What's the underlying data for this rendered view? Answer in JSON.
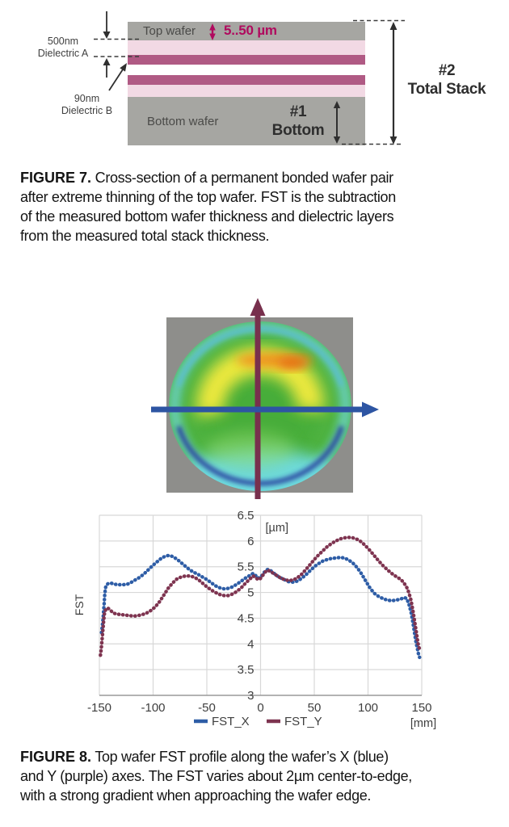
{
  "figure7": {
    "diagram": {
      "top_wafer_label": "Top wafer",
      "thickness_label": "5..50 µm",
      "dielectric_a_line1": "500nm",
      "dielectric_a_line2": "Dielectric A",
      "dielectric_b_line1": "90nm",
      "dielectric_b_line2": "Dielectric B",
      "bottom_wafer_label": "Bottom wafer",
      "bottom_ref_line1": "#1",
      "bottom_ref_line2": "Bottom",
      "total_stack_line1": "#2",
      "total_stack_line2": "Total Stack",
      "colors": {
        "wafer_gray": "#a6a6a2",
        "dielectric_light_pink": "#f2d9e4",
        "dielectric_dark_pink": "#b05a84",
        "thickness_text_magenta": "#b00a5e"
      }
    },
    "caption_label": "FIGURE 7.",
    "caption_lines": [
      "Cross-section of a permanent bonded wafer pair",
      "after extreme thinning of the top wafer. FST is the subtraction",
      "of the measured bottom wafer thickness and dielectric layers",
      "from the measured total stack thickness."
    ]
  },
  "figure8": {
    "wafer_map": {
      "colors": {
        "background_gray": "#8e8e8b",
        "wafer_green": "#4fb341",
        "ring_yellow": "#f3ea3d",
        "hot_orange": "#ee8a1f",
        "edge_cyan": "#6fdce2",
        "rim_blue": "#2c429f",
        "x_axis_arrow_blue": "#2d55a3",
        "y_axis_arrow_purple": "#78304d"
      }
    },
    "caption_label": "FIGURE 8.",
    "caption_lines": [
      "Top wafer FST profile along the wafer’s X (blue)",
      "and Y (purple) axes. The FST varies about 2µm center-to-edge,",
      "with a strong gradient when approaching the wafer edge."
    ]
  },
  "chart_data": {
    "type": "scatter",
    "title": "",
    "ylabel": "FST",
    "y_unit_label": "[µm]",
    "x_unit_label": "[mm]",
    "xlim": [
      -150,
      150
    ],
    "ylim": [
      3,
      6.5
    ],
    "x_ticks": [
      -150,
      -100,
      -50,
      0,
      50,
      100,
      150
    ],
    "y_ticks": [
      3,
      3.5,
      4,
      4.5,
      5,
      5.5,
      6,
      6.5
    ],
    "grid": true,
    "legend_position": "bottom",
    "series": [
      {
        "name": "FST_X",
        "color": "#2e5da6",
        "points": [
          [
            -148,
            4.22
          ],
          [
            -147.5,
            4.3
          ],
          [
            -147,
            4.4
          ],
          [
            -146.5,
            4.52
          ],
          [
            -146,
            4.65
          ],
          [
            -145.5,
            4.8
          ],
          [
            -145,
            4.95
          ],
          [
            -144.5,
            5.05
          ],
          [
            -144,
            5.12
          ],
          [
            -142,
            5.17
          ],
          [
            -139,
            5.18
          ],
          [
            -136,
            5.16
          ],
          [
            -132,
            5.15
          ],
          [
            -128,
            5.15
          ],
          [
            -124,
            5.16
          ],
          [
            -120,
            5.2
          ],
          [
            -116,
            5.25
          ],
          [
            -112,
            5.3
          ],
          [
            -108,
            5.37
          ],
          [
            -104,
            5.45
          ],
          [
            -100,
            5.53
          ],
          [
            -96,
            5.6
          ],
          [
            -92,
            5.67
          ],
          [
            -88,
            5.71
          ],
          [
            -85,
            5.72
          ],
          [
            -82,
            5.7
          ],
          [
            -78,
            5.65
          ],
          [
            -74,
            5.58
          ],
          [
            -70,
            5.51
          ],
          [
            -66,
            5.44
          ],
          [
            -62,
            5.39
          ],
          [
            -58,
            5.35
          ],
          [
            -54,
            5.3
          ],
          [
            -50,
            5.25
          ],
          [
            -46,
            5.19
          ],
          [
            -42,
            5.13
          ],
          [
            -38,
            5.09
          ],
          [
            -34,
            5.07
          ],
          [
            -30,
            5.08
          ],
          [
            -26,
            5.11
          ],
          [
            -22,
            5.16
          ],
          [
            -18,
            5.22
          ],
          [
            -14,
            5.28
          ],
          [
            -10,
            5.33
          ],
          [
            -7,
            5.37
          ],
          [
            -5,
            5.34
          ],
          [
            -3,
            5.29
          ],
          [
            -1,
            5.28
          ],
          [
            1,
            5.32
          ],
          [
            3,
            5.38
          ],
          [
            5,
            5.43
          ],
          [
            7,
            5.45
          ],
          [
            9,
            5.43
          ],
          [
            12,
            5.38
          ],
          [
            15,
            5.33
          ],
          [
            18,
            5.29
          ],
          [
            22,
            5.25
          ],
          [
            26,
            5.21
          ],
          [
            30,
            5.2
          ],
          [
            34,
            5.22
          ],
          [
            38,
            5.27
          ],
          [
            42,
            5.34
          ],
          [
            46,
            5.42
          ],
          [
            50,
            5.5
          ],
          [
            54,
            5.56
          ],
          [
            58,
            5.61
          ],
          [
            62,
            5.64
          ],
          [
            66,
            5.66
          ],
          [
            70,
            5.67
          ],
          [
            74,
            5.68
          ],
          [
            78,
            5.67
          ],
          [
            82,
            5.63
          ],
          [
            86,
            5.57
          ],
          [
            90,
            5.48
          ],
          [
            94,
            5.36
          ],
          [
            98,
            5.22
          ],
          [
            102,
            5.08
          ],
          [
            106,
            4.98
          ],
          [
            110,
            4.92
          ],
          [
            114,
            4.88
          ],
          [
            118,
            4.85
          ],
          [
            122,
            4.84
          ],
          [
            126,
            4.85
          ],
          [
            130,
            4.87
          ],
          [
            134,
            4.9
          ],
          [
            136,
            4.88
          ],
          [
            138,
            4.78
          ],
          [
            140,
            4.62
          ],
          [
            141.5,
            4.45
          ],
          [
            143,
            4.25
          ],
          [
            144.5,
            4.05
          ],
          [
            146,
            3.9
          ],
          [
            147,
            3.8
          ],
          [
            148,
            3.74
          ]
        ]
      },
      {
        "name": "FST_Y",
        "color": "#7e3450",
        "points": [
          [
            -149,
            3.78
          ],
          [
            -148.5,
            3.86
          ],
          [
            -148,
            3.96
          ],
          [
            -147.5,
            4.08
          ],
          [
            -147,
            4.2
          ],
          [
            -146.5,
            4.33
          ],
          [
            -146,
            4.45
          ],
          [
            -145.5,
            4.55
          ],
          [
            -145,
            4.62
          ],
          [
            -144,
            4.67
          ],
          [
            -142.5,
            4.7
          ],
          [
            -141,
            4.68
          ],
          [
            -139,
            4.64
          ],
          [
            -137,
            4.6
          ],
          [
            -134,
            4.58
          ],
          [
            -130,
            4.57
          ],
          [
            -126,
            4.56
          ],
          [
            -122,
            4.55
          ],
          [
            -118,
            4.54
          ],
          [
            -114,
            4.55
          ],
          [
            -110,
            4.57
          ],
          [
            -106,
            4.6
          ],
          [
            -102,
            4.65
          ],
          [
            -98,
            4.72
          ],
          [
            -94,
            4.82
          ],
          [
            -90,
            4.95
          ],
          [
            -86,
            5.08
          ],
          [
            -82,
            5.18
          ],
          [
            -78,
            5.26
          ],
          [
            -74,
            5.3
          ],
          [
            -70,
            5.32
          ],
          [
            -66,
            5.32
          ],
          [
            -62,
            5.3
          ],
          [
            -58,
            5.25
          ],
          [
            -54,
            5.18
          ],
          [
            -50,
            5.11
          ],
          [
            -46,
            5.05
          ],
          [
            -42,
            5.0
          ],
          [
            -38,
            4.96
          ],
          [
            -34,
            4.94
          ],
          [
            -30,
            4.94
          ],
          [
            -26,
            4.97
          ],
          [
            -22,
            5.02
          ],
          [
            -18,
            5.09
          ],
          [
            -14,
            5.18
          ],
          [
            -10,
            5.26
          ],
          [
            -7,
            5.32
          ],
          [
            -5,
            5.3
          ],
          [
            -3,
            5.26
          ],
          [
            -1,
            5.25
          ],
          [
            1,
            5.3
          ],
          [
            3,
            5.36
          ],
          [
            5,
            5.41
          ],
          [
            7,
            5.43
          ],
          [
            9,
            5.41
          ],
          [
            12,
            5.37
          ],
          [
            15,
            5.33
          ],
          [
            18,
            5.29
          ],
          [
            22,
            5.25
          ],
          [
            26,
            5.23
          ],
          [
            30,
            5.24
          ],
          [
            34,
            5.28
          ],
          [
            38,
            5.35
          ],
          [
            42,
            5.44
          ],
          [
            46,
            5.54
          ],
          [
            50,
            5.64
          ],
          [
            54,
            5.73
          ],
          [
            58,
            5.81
          ],
          [
            62,
            5.89
          ],
          [
            66,
            5.95
          ],
          [
            70,
            6.0
          ],
          [
            74,
            6.04
          ],
          [
            78,
            6.06
          ],
          [
            82,
            6.07
          ],
          [
            86,
            6.06
          ],
          [
            90,
            6.03
          ],
          [
            94,
            5.98
          ],
          [
            98,
            5.9
          ],
          [
            102,
            5.81
          ],
          [
            106,
            5.71
          ],
          [
            110,
            5.61
          ],
          [
            114,
            5.52
          ],
          [
            118,
            5.44
          ],
          [
            122,
            5.37
          ],
          [
            126,
            5.31
          ],
          [
            130,
            5.26
          ],
          [
            133,
            5.2
          ],
          [
            136,
            5.1
          ],
          [
            138,
            5.0
          ],
          [
            140,
            4.85
          ],
          [
            142,
            4.62
          ],
          [
            143.5,
            4.42
          ],
          [
            145,
            4.22
          ],
          [
            146,
            4.08
          ],
          [
            147,
            3.96
          ],
          [
            148,
            3.9
          ]
        ]
      }
    ]
  }
}
